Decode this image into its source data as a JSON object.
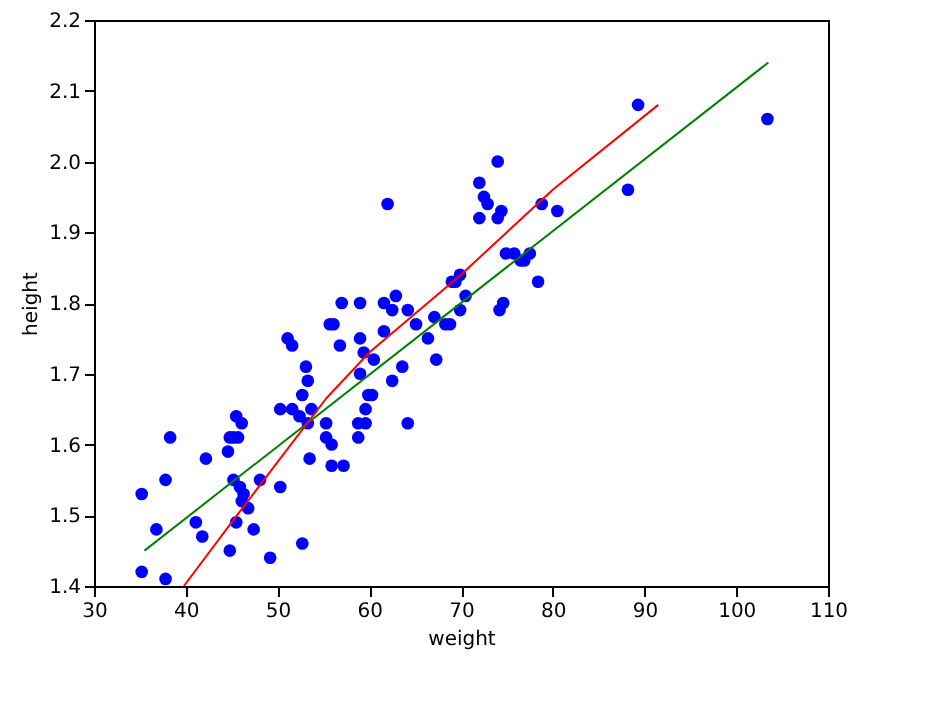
{
  "chart_data": {
    "type": "scatter",
    "xlabel": "weight",
    "ylabel": "height",
    "xlim": [
      30,
      110
    ],
    "ylim": [
      1.4,
      2.2
    ],
    "xticks": [
      30,
      40,
      50,
      60,
      70,
      80,
      90,
      100,
      110
    ],
    "yticks": [
      1.4,
      1.5,
      1.6,
      1.7,
      1.8,
      1.9,
      {
        "value": 2,
        "label": "2.0"
      },
      2.1,
      2.2
    ],
    "grid": false,
    "marker": "circle",
    "series": [
      {
        "type": "scatter",
        "color": "#0000ff",
        "x": [
          35.2,
          37.8,
          35.2,
          36.8,
          37.8,
          38.3,
          41.1,
          41.8,
          42.2,
          44.6,
          44.8,
          45.2,
          45.7,
          45.5,
          46.1,
          45.2,
          45.9,
          46.3,
          46.1,
          46.8,
          45.5,
          44.8,
          47.4,
          48.1,
          49.2,
          50.3,
          50.3,
          51.6,
          51.1,
          51.6,
          52.7,
          53.1,
          53.3,
          52.4,
          53.3,
          53.7,
          53.5,
          52.7,
          55.3,
          55.3,
          55.9,
          55.9,
          55.7,
          56.1,
          56.8,
          57.0,
          57.2,
          59.0,
          59.0,
          59.4,
          59.0,
          58.8,
          58.8,
          59.6,
          59.6,
          59.9,
          60.3,
          60.5,
          61.6,
          61.6,
          62.0,
          62.5,
          62.9,
          62.5,
          63.6,
          64.2,
          64.2,
          65.1,
          66.4,
          67.1,
          67.3,
          68.3,
          68.8,
          69.0,
          69.4,
          69.9,
          69.9,
          70.5,
          72.0,
          72.0,
          72.5,
          72.9,
          74.0,
          74.0,
          74.4,
          74.2,
          74.6,
          74.9,
          75.8,
          76.5,
          76.9,
          77.5,
          78.4,
          78.8,
          80.5,
          89.3,
          88.2,
          103.4
        ],
        "values": [
          1.42,
          1.41,
          1.53,
          1.48,
          1.55,
          1.61,
          1.49,
          1.47,
          1.58,
          1.59,
          1.61,
          1.61,
          1.61,
          1.64,
          1.63,
          1.55,
          1.54,
          1.53,
          1.52,
          1.51,
          1.49,
          1.45,
          1.48,
          1.55,
          1.44,
          1.54,
          1.65,
          1.65,
          1.75,
          1.74,
          1.67,
          1.71,
          1.69,
          1.64,
          1.63,
          1.65,
          1.58,
          1.46,
          1.63,
          1.61,
          1.6,
          1.57,
          1.77,
          1.77,
          1.74,
          1.8,
          1.57,
          1.8,
          1.75,
          1.73,
          1.7,
          1.63,
          1.61,
          1.63,
          1.65,
          1.67,
          1.67,
          1.72,
          1.76,
          1.8,
          1.94,
          1.79,
          1.81,
          1.69,
          1.71,
          1.63,
          1.79,
          1.77,
          1.75,
          1.78,
          1.72,
          1.77,
          1.77,
          1.83,
          1.83,
          1.84,
          1.79,
          1.81,
          1.97,
          1.92,
          1.95,
          1.94,
          2.0,
          1.92,
          1.93,
          1.79,
          1.8,
          1.87,
          1.87,
          1.86,
          1.86,
          1.87,
          1.83,
          1.94,
          1.93,
          2.08,
          1.96,
          2.06
        ]
      },
      {
        "type": "line",
        "color": "#008000",
        "marker": "none",
        "line_style": "solid",
        "x": [
          35.5,
          103.5
        ],
        "values": [
          1.45,
          2.14
        ]
      },
      {
        "type": "line",
        "color": "#ff0000",
        "marker": "none",
        "line_style": "solid",
        "x": [
          39.8,
          45,
          50,
          55.3,
          60,
          70,
          80,
          91.5
        ],
        "values": [
          1.4,
          1.49,
          1.575,
          1.665,
          1.73,
          1.84,
          1.96,
          2.08
        ]
      }
    ]
  }
}
